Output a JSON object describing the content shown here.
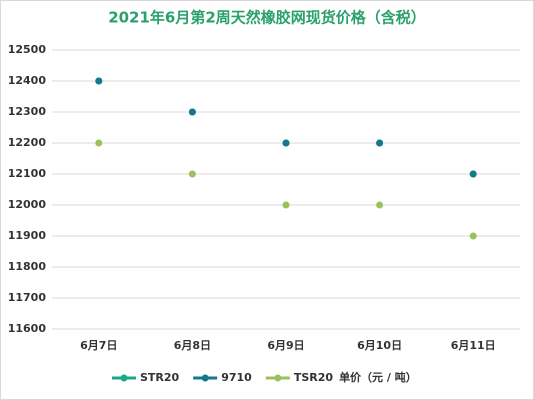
{
  "chart_data": {
    "type": "line",
    "title": "2021年6月第2周天然橡胶网现货价格（含税）",
    "categories": [
      "6月7日",
      "6月8日",
      "6月9日",
      "6月10日",
      "6月11日"
    ],
    "series": [
      {
        "name": "STR20",
        "color": "#1aa88a",
        "values": [
          12400,
          12300,
          12200,
          12200,
          12100
        ]
      },
      {
        "name": "9710",
        "color": "#15798a",
        "values": [
          12400,
          12300,
          12200,
          12200,
          12100
        ]
      },
      {
        "name": "TSR20",
        "color": "#9cc05a",
        "values": [
          12200,
          12100,
          12000,
          12000,
          11900
        ]
      }
    ],
    "unit_label": "单价（元 / 吨）",
    "ylim": [
      11600,
      12500
    ],
    "yticks": [
      11600,
      11700,
      11800,
      11900,
      12000,
      12100,
      12200,
      12300,
      12400,
      12500
    ],
    "grid": true
  }
}
